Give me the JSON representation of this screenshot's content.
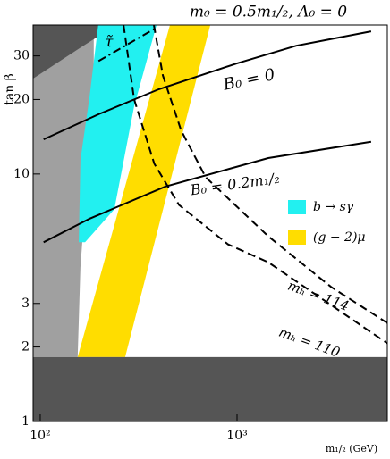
{
  "chart_data": {
    "type": "line",
    "title": "m₀ = 0.5m₁/₂, A₀ = 0",
    "x_label": "m₁/₂ (GeV)",
    "y_label": "tan β",
    "log_x": true,
    "log_y": true,
    "xlim": [
      92,
      5800
    ],
    "ylim": [
      1,
      40
    ],
    "xticks": [
      {
        "value": 100,
        "label": "10²"
      },
      {
        "value": 1000,
        "label": "10³"
      }
    ],
    "yticks": [
      1,
      2,
      3,
      10,
      20,
      30
    ],
    "legend": "right",
    "regions": [
      {
        "color": "#a0a0a0",
        "x": [
          92,
          187,
          187,
          160,
          155,
          92
        ],
        "y": [
          40,
          40,
          22.3,
          4.2,
          1.82,
          1.82
        ]
      },
      {
        "color": "#555555",
        "x": [
          92,
          243,
          160,
          92
        ],
        "y": [
          40,
          40,
          32.4,
          24.3
        ]
      },
      {
        "name": "b → sγ",
        "color": "#22f0f0",
        "x": [
          197,
          390,
          300,
          238,
          169,
          157,
          160,
          178
        ],
        "y": [
          40,
          40,
          18.8,
          7.2,
          5.3,
          5.3,
          11.4,
          20.5
        ]
      },
      {
        "name": "(g − 2)μ",
        "color": "#ffdd00",
        "x": [
          155,
          456,
          731,
          270
        ],
        "y": [
          1.82,
          40,
          40,
          1.82
        ]
      },
      {
        "color": "#555555",
        "x": [
          92,
          5800,
          5800,
          92
        ],
        "y": [
          1,
          1,
          1.82,
          1.82
        ]
      }
    ],
    "series": [
      {
        "color": "#000000",
        "style": "solid",
        "x": [
          104,
          200,
          400,
          1000,
          2000,
          4800
        ],
        "y": [
          13.8,
          17.5,
          22,
          28,
          33,
          37.7
        ]
      },
      {
        "color": "#000000",
        "style": "solid",
        "x": [
          104,
          178,
          432,
          1440,
          4800
        ],
        "y": [
          5.3,
          6.6,
          8.9,
          11.6,
          13.5
        ]
      },
      {
        "color": "#000000",
        "style": "dashed",
        "x": [
          378,
          420,
          520,
          693,
          1440,
          3000,
          5800
        ],
        "y": [
          40,
          25,
          15,
          9.7,
          5.6,
          3.5,
          2.5
        ]
      },
      {
        "color": "#000000",
        "style": "dashed",
        "x": [
          265,
          300,
          380,
          507,
          900,
          1440,
          5800
        ],
        "y": [
          40,
          20,
          11,
          7.5,
          5.2,
          4.4,
          2.07
        ]
      },
      {
        "color": "#000000",
        "style": "dashdot",
        "x": [
          198,
          390
        ],
        "y": [
          28.6,
          39
        ]
      }
    ],
    "annotations": [
      "B₀ = 0",
      "B₀ = 0.2m₁/₂",
      "mₕ = 114",
      "mₕ = 110",
      "τ̃"
    ]
  }
}
